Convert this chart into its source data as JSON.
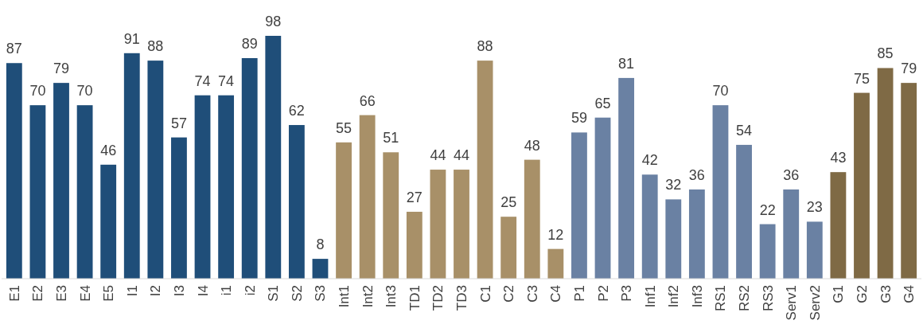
{
  "chart_data": {
    "type": "bar",
    "categories": [
      "E1",
      "E2",
      "E3",
      "E4",
      "E5",
      "I1",
      "I2",
      "I3",
      "I4",
      "i1",
      "i2",
      "S1",
      "S2",
      "S3",
      "Int1",
      "Int2",
      "Int3",
      "TD1",
      "TD2",
      "TD3",
      "C1",
      "C2",
      "C3",
      "C4",
      "P1",
      "P2",
      "P3",
      "Inf1",
      "Inf2",
      "Inf3",
      "RS1",
      "RS2",
      "RS3",
      "Serv1",
      "Serv2",
      "G1",
      "G2",
      "G3",
      "G4"
    ],
    "values": [
      87,
      70,
      79,
      70,
      46,
      91,
      88,
      57,
      74,
      74,
      89,
      98,
      62,
      8,
      55,
      66,
      51,
      27,
      44,
      44,
      88,
      25,
      48,
      12,
      59,
      65,
      81,
      42,
      32,
      36,
      70,
      54,
      22,
      36,
      23,
      43,
      75,
      85,
      79
    ],
    "colors": [
      "#1f4e79",
      "#1f4e79",
      "#1f4e79",
      "#1f4e79",
      "#1f4e79",
      "#1f4e79",
      "#1f4e79",
      "#1f4e79",
      "#1f4e79",
      "#1f4e79",
      "#1f4e79",
      "#1f4e79",
      "#1f4e79",
      "#1f4e79",
      "#a89068",
      "#a89068",
      "#a89068",
      "#a89068",
      "#a89068",
      "#a89068",
      "#a89068",
      "#a89068",
      "#a89068",
      "#a89068",
      "#6a81a3",
      "#6a81a3",
      "#6a81a3",
      "#6a81a3",
      "#6a81a3",
      "#6a81a3",
      "#6a81a3",
      "#6a81a3",
      "#6a81a3",
      "#6a81a3",
      "#6a81a3",
      "#7f6a45",
      "#7f6a45",
      "#7f6a45",
      "#7f6a45"
    ],
    "data_labels": true
  }
}
